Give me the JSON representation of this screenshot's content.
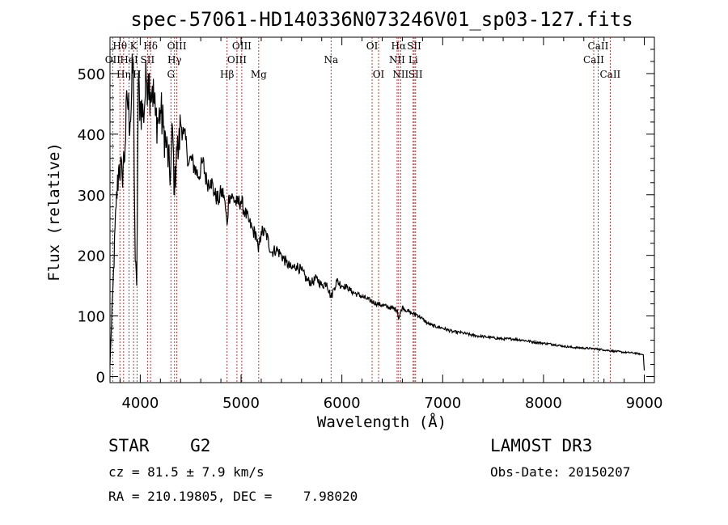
{
  "chart_data": {
    "type": "line",
    "title": "spec-57061-HD140336N073246V01_sp03-127.fits",
    "xlabel": "Wavelength (Å)",
    "ylabel": "Flux (relative)",
    "xlim": [
      3700,
      9100
    ],
    "ylim": [
      -10,
      560
    ],
    "xticks": [
      4000,
      5000,
      6000,
      7000,
      8000,
      9000
    ],
    "yticks": [
      0,
      100,
      200,
      300,
      400,
      500
    ],
    "series": [
      {
        "name": "flux",
        "x": [
          3700,
          3730,
          3760,
          3790,
          3820,
          3850,
          3870,
          3900,
          3930,
          3950,
          3965,
          3980,
          4000,
          4030,
          4060,
          4080,
          4102,
          4120,
          4150,
          4180,
          4200,
          4230,
          4260,
          4300,
          4320,
          4340,
          4360,
          4380,
          4400,
          4430,
          4460,
          4480,
          4500,
          4540,
          4580,
          4620,
          4660,
          4700,
          4740,
          4780,
          4800,
          4830,
          4861,
          4880,
          4920,
          4960,
          5000,
          5040,
          5080,
          5120,
          5150,
          5172,
          5200,
          5250,
          5300,
          5350,
          5400,
          5450,
          5500,
          5550,
          5600,
          5650,
          5700,
          5750,
          5800,
          5850,
          5893,
          5920,
          5950,
          6000,
          6050,
          6100,
          6150,
          6200,
          6250,
          6300,
          6350,
          6400,
          6450,
          6500,
          6550,
          6563,
          6600,
          6650,
          6700,
          6750,
          6800,
          6850,
          6900,
          6950,
          7000,
          7100,
          7200,
          7300,
          7400,
          7500,
          7600,
          7700,
          7800,
          7900,
          8000,
          8100,
          8200,
          8300,
          8400,
          8500,
          8600,
          8700,
          8800,
          8900,
          8990,
          9000
        ],
        "y": [
          20,
          150,
          280,
          350,
          330,
          380,
          460,
          420,
          520,
          190,
          150,
          480,
          450,
          430,
          490,
          500,
          470,
          480,
          430,
          420,
          440,
          410,
          380,
          330,
          410,
          300,
          380,
          370,
          420,
          400,
          380,
          350,
          360,
          345,
          330,
          355,
          320,
          325,
          300,
          290,
          305,
          300,
          250,
          300,
          295,
          285,
          290,
          270,
          255,
          240,
          235,
          205,
          240,
          235,
          205,
          210,
          200,
          188,
          178,
          183,
          175,
          160,
          155,
          162,
          150,
          155,
          130,
          145,
          158,
          150,
          148,
          140,
          136,
          132,
          128,
          124,
          120,
          118,
          115,
          113,
          110,
          95,
          115,
          108,
          104,
          102,
          95,
          88,
          84,
          82,
          80,
          74,
          72,
          68,
          66,
          64,
          62,
          62,
          60,
          57,
          55,
          53,
          50,
          48,
          47,
          46,
          44,
          42,
          40,
          39,
          36,
          10
        ]
      }
    ],
    "spectral_lines": [
      {
        "label": "Hθ",
        "wavelength": 3798,
        "row": 1
      },
      {
        "label": "OII",
        "wavelength": 3727,
        "row": 2
      },
      {
        "label": "Hη",
        "wavelength": 3835,
        "row": 3
      },
      {
        "label": "K",
        "wavelength": 3934,
        "row": 1
      },
      {
        "label": "HeI",
        "wavelength": 3889,
        "row": 2
      },
      {
        "label": "H",
        "wavelength": 3968,
        "row": 3
      },
      {
        "label": "Hδ",
        "wavelength": 4102,
        "row": 1
      },
      {
        "label": "SII",
        "wavelength": 4072,
        "row": 2
      },
      {
        "label": "OIII",
        "wavelength": 4363,
        "row": 1
      },
      {
        "label": "Hγ",
        "wavelength": 4340,
        "row": 2
      },
      {
        "label": "G",
        "wavelength": 4304,
        "row": 3
      },
      {
        "label": "OIII",
        "wavelength": 5007,
        "row": 1
      },
      {
        "label": "OIII",
        "wavelength": 4959,
        "row": 2
      },
      {
        "label": "Hβ",
        "wavelength": 4861,
        "row": 3
      },
      {
        "label": "Mg",
        "wavelength": 5175,
        "row": 3
      },
      {
        "label": "Na",
        "wavelength": 5893,
        "row": 2
      },
      {
        "label": "OI",
        "wavelength": 6300,
        "row": 1
      },
      {
        "label": "OI",
        "wavelength": 6364,
        "row": 3
      },
      {
        "label": "Hα",
        "wavelength": 6563,
        "row": 1
      },
      {
        "label": "NII",
        "wavelength": 6548,
        "row": 2
      },
      {
        "label": "NII",
        "wavelength": 6583,
        "row": 3
      },
      {
        "label": "SII",
        "wavelength": 6717,
        "row": 1
      },
      {
        "label": "Li",
        "wavelength": 6707,
        "row": 2
      },
      {
        "label": "SII",
        "wavelength": 6731,
        "row": 3
      },
      {
        "label": "CaII",
        "wavelength": 8542,
        "row": 1
      },
      {
        "label": "CaII",
        "wavelength": 8498,
        "row": 2
      },
      {
        "label": "CaII",
        "wavelength": 8662,
        "row": 3
      }
    ]
  },
  "info": {
    "class_text": "STAR    G2",
    "survey": "LAMOST DR3",
    "cz": "cz = 81.5 ± 7.9 km/s",
    "obs_date": "Obs-Date: 20150207",
    "coords": "RA = 210.19805, DEC =    7.98020"
  },
  "colors": {
    "axis": "#000000",
    "spectrum": "#000000",
    "line_marker": "#b22222"
  }
}
